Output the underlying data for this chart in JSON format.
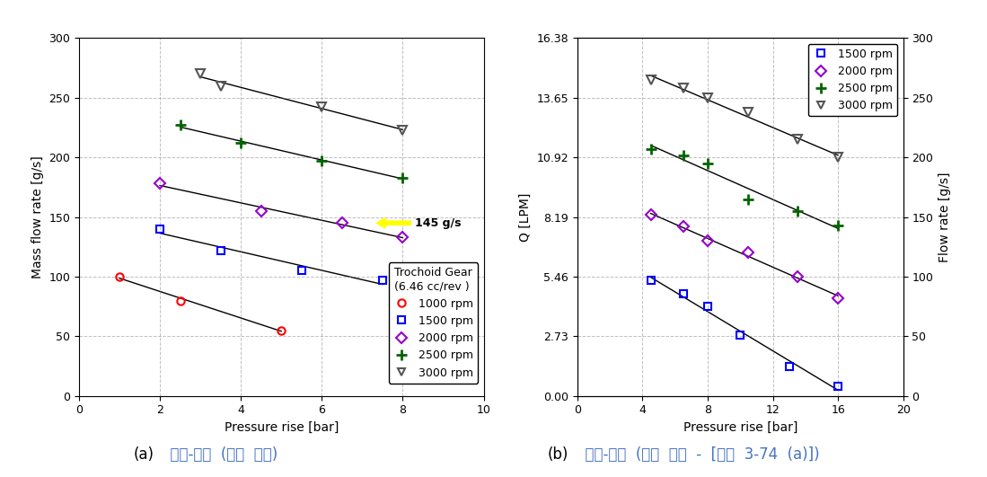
{
  "left": {
    "xlabel": "Pressure rise [bar]",
    "ylabel": "Mass flow rate [g/s]",
    "xlim": [
      0.0,
      10.0
    ],
    "ylim": [
      0,
      300
    ],
    "xticks": [
      0.0,
      2.0,
      4.0,
      6.0,
      8.0,
      10.0
    ],
    "yticks": [
      0,
      50,
      100,
      150,
      200,
      250,
      300
    ],
    "legend_title": "Trochoid Gear\n(6.46 cc/rev )",
    "series": [
      {
        "label": "1000 rpm",
        "color": "#ff0000",
        "marker": "o",
        "markersize": 6,
        "fillstyle": "none",
        "x": [
          1.0,
          2.5,
          5.0
        ],
        "y": [
          100,
          80,
          55
        ]
      },
      {
        "label": "1500 rpm",
        "color": "#0000ff",
        "marker": "s",
        "markersize": 6,
        "fillstyle": "none",
        "x": [
          2.0,
          3.5,
          5.5,
          7.5
        ],
        "y": [
          140,
          122,
          105,
          97
        ]
      },
      {
        "label": "2000 rpm",
        "color": "#9900cc",
        "marker": "D",
        "markersize": 6,
        "fillstyle": "none",
        "x": [
          2.0,
          4.5,
          6.5,
          8.0
        ],
        "y": [
          178,
          155,
          145,
          133
        ]
      },
      {
        "label": "2500 rpm",
        "color": "#006400",
        "marker": "plus",
        "markersize": 9,
        "fillstyle": "full",
        "x": [
          2.5,
          4.0,
          6.0,
          8.0
        ],
        "y": [
          227,
          212,
          197,
          183
        ]
      },
      {
        "label": "3000 rpm",
        "color": "#555555",
        "marker": "v",
        "markersize": 7,
        "fillstyle": "none",
        "x": [
          3.0,
          3.5,
          6.0,
          8.0
        ],
        "y": [
          270,
          260,
          242,
          223
        ]
      }
    ]
  },
  "right": {
    "xlabel": "Pressure rise [bar]",
    "ylabel_lpm": "Q [LPM]",
    "ylabel_gs": "Flow rate [g/s]",
    "xlim": [
      0.0,
      20.0
    ],
    "ylim_gs": [
      0,
      300
    ],
    "xticks": [
      0.0,
      4.0,
      8.0,
      12.0,
      16.0,
      20.0
    ],
    "yticks_gs": [
      0,
      50,
      100,
      150,
      200,
      250,
      300
    ],
    "yticks_lpm": [
      0.0,
      2.73,
      5.46,
      8.19,
      10.92,
      13.65,
      16.38
    ],
    "series": [
      {
        "label": "1500 rpm",
        "color": "#0000ff",
        "marker": "s",
        "markersize": 6,
        "fillstyle": "none",
        "x": [
          4.5,
          6.5,
          8.0,
          10.0,
          13.0,
          16.0
        ],
        "y": [
          97,
          86,
          75,
          51,
          25,
          8
        ]
      },
      {
        "label": "2000 rpm",
        "color": "#9900cc",
        "marker": "D",
        "markersize": 6,
        "fillstyle": "none",
        "x": [
          4.5,
          6.5,
          8.0,
          10.5,
          13.5,
          16.0
        ],
        "y": [
          152,
          142,
          130,
          120,
          100,
          82
        ]
      },
      {
        "label": "2500 rpm",
        "color": "#006400",
        "marker": "plus",
        "markersize": 9,
        "fillstyle": "full",
        "x": [
          4.5,
          6.5,
          8.0,
          10.5,
          13.5,
          16.0
        ],
        "y": [
          207,
          202,
          195,
          165,
          155,
          143
        ]
      },
      {
        "label": "3000 rpm",
        "color": "#555555",
        "marker": "v",
        "markersize": 7,
        "fillstyle": "none",
        "x": [
          4.5,
          6.5,
          8.0,
          10.5,
          13.5,
          16.0
        ],
        "y": [
          265,
          258,
          250,
          238,
          215,
          200
        ]
      }
    ]
  },
  "caption_a_prefix": "(a)",
  "caption_a_korean": "  압력-유량  (평가  결과)",
  "caption_b_prefix": "(b)",
  "caption_b_korean": "  압력-유량  (해석  결과  -  [그림  3-74  (a)])",
  "caption_color": "#4472C4",
  "bg_color": "#ffffff"
}
